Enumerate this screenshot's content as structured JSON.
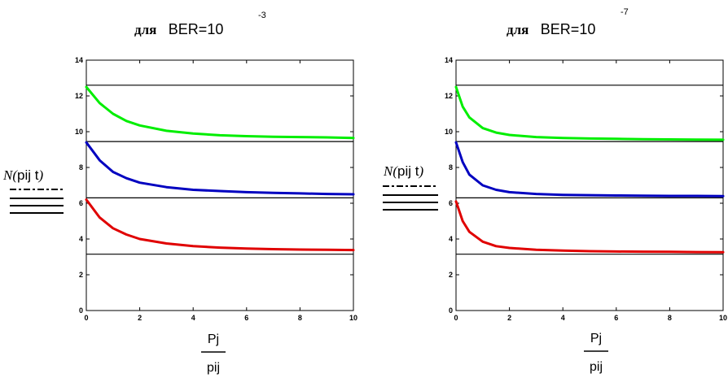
{
  "chart_data": [
    {
      "type": "line",
      "title": {
        "prefix": "для",
        "text": "BER=10",
        "exponent": "-3"
      },
      "ylabel": {
        "func": "N",
        "args": "pij t"
      },
      "xlabel": {
        "numerator": "Pj",
        "denominator": "pij"
      },
      "xlim": [
        0,
        10
      ],
      "ylim": [
        0,
        14
      ],
      "x_ticks": [
        "0",
        "2",
        "4",
        "6",
        "8",
        "10"
      ],
      "y_ticks": [
        "0",
        "2",
        "4",
        "6",
        "8",
        "10",
        "12",
        "14"
      ],
      "grid": false,
      "series": [
        {
          "color": "#00ee00",
          "x": [
            0,
            0.5,
            1,
            1.5,
            2,
            3,
            4,
            5,
            6,
            7,
            8,
            9,
            10
          ],
          "y": [
            12.5,
            11.6,
            11.0,
            10.6,
            10.35,
            10.05,
            9.9,
            9.8,
            9.75,
            9.72,
            9.7,
            9.68,
            9.65
          ]
        },
        {
          "color": "#0000c0",
          "x": [
            0,
            0.5,
            1,
            1.5,
            2,
            3,
            4,
            5,
            6,
            7,
            8,
            9,
            10
          ],
          "y": [
            9.4,
            8.4,
            7.75,
            7.4,
            7.15,
            6.9,
            6.75,
            6.68,
            6.62,
            6.58,
            6.55,
            6.52,
            6.5
          ]
        },
        {
          "color": "#e00000",
          "x": [
            0,
            0.5,
            1,
            1.5,
            2,
            3,
            4,
            5,
            6,
            7,
            8,
            9,
            10
          ],
          "y": [
            6.2,
            5.2,
            4.6,
            4.25,
            4.0,
            3.75,
            3.6,
            3.52,
            3.47,
            3.43,
            3.41,
            3.4,
            3.38
          ]
        }
      ],
      "reference_lines": [
        {
          "color": "#000000",
          "y": 12.6
        },
        {
          "color": "#000000",
          "y": 9.45
        },
        {
          "color": "#000000",
          "y": 6.3
        },
        {
          "color": "#000000",
          "y": 3.15
        }
      ]
    },
    {
      "type": "line",
      "title": {
        "prefix": "для",
        "text": "BER=10",
        "exponent": "-7"
      },
      "ylabel": {
        "func": "N",
        "args": "pij t"
      },
      "xlabel": {
        "numerator": "Pj",
        "denominator": "pij"
      },
      "xlim": [
        0,
        10
      ],
      "ylim": [
        0,
        14
      ],
      "x_ticks": [
        "0",
        "2",
        "4",
        "6",
        "8",
        "10"
      ],
      "y_ticks": [
        "0",
        "2",
        "4",
        "6",
        "8",
        "10",
        "12",
        "14"
      ],
      "grid": false,
      "series": [
        {
          "color": "#00ee00",
          "x": [
            0,
            0.25,
            0.5,
            1,
            1.5,
            2,
            3,
            4,
            5,
            6,
            7,
            8,
            9,
            10
          ],
          "y": [
            12.5,
            11.4,
            10.8,
            10.2,
            9.95,
            9.82,
            9.7,
            9.65,
            9.62,
            9.6,
            9.58,
            9.57,
            9.56,
            9.55
          ]
        },
        {
          "color": "#0000c0",
          "x": [
            0,
            0.25,
            0.5,
            1,
            1.5,
            2,
            3,
            4,
            5,
            6,
            7,
            8,
            9,
            10
          ],
          "y": [
            9.4,
            8.3,
            7.6,
            7.0,
            6.75,
            6.62,
            6.52,
            6.47,
            6.45,
            6.43,
            6.42,
            6.41,
            6.41,
            6.4
          ]
        },
        {
          "color": "#e00000",
          "x": [
            0,
            0.25,
            0.5,
            1,
            1.5,
            2,
            3,
            4,
            5,
            6,
            7,
            8,
            9,
            10
          ],
          "y": [
            6.1,
            5.0,
            4.4,
            3.85,
            3.6,
            3.5,
            3.4,
            3.35,
            3.32,
            3.3,
            3.29,
            3.28,
            3.27,
            3.26
          ]
        }
      ],
      "reference_lines": [
        {
          "color": "#000000",
          "y": 12.6
        },
        {
          "color": "#000000",
          "y": 9.45
        },
        {
          "color": "#000000",
          "y": 6.3
        },
        {
          "color": "#000000",
          "y": 3.15
        }
      ]
    }
  ]
}
